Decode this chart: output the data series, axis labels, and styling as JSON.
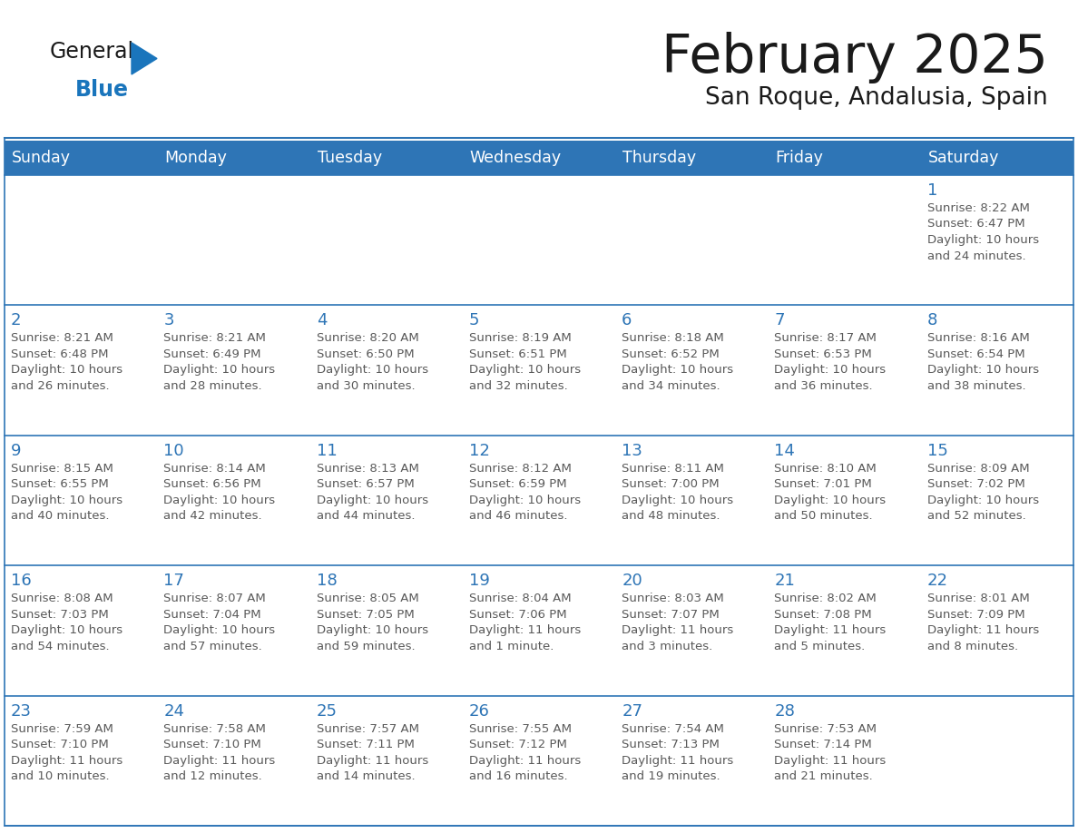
{
  "title": "February 2025",
  "subtitle": "San Roque, Andalusia, Spain",
  "header_bg": "#2E75B6",
  "header_text_color": "#FFFFFF",
  "cell_border_color": "#2E75B6",
  "day_number_color": "#2E75B6",
  "info_text_color": "#595959",
  "bg_color": "#FFFFFF",
  "alt_row_bg": "#EEF3F9",
  "days_of_week": [
    "Sunday",
    "Monday",
    "Tuesday",
    "Wednesday",
    "Thursday",
    "Friday",
    "Saturday"
  ],
  "weeks": [
    [
      {
        "day": "",
        "info": ""
      },
      {
        "day": "",
        "info": ""
      },
      {
        "day": "",
        "info": ""
      },
      {
        "day": "",
        "info": ""
      },
      {
        "day": "",
        "info": ""
      },
      {
        "day": "",
        "info": ""
      },
      {
        "day": "1",
        "info": "Sunrise: 8:22 AM\nSunset: 6:47 PM\nDaylight: 10 hours\nand 24 minutes."
      }
    ],
    [
      {
        "day": "2",
        "info": "Sunrise: 8:21 AM\nSunset: 6:48 PM\nDaylight: 10 hours\nand 26 minutes."
      },
      {
        "day": "3",
        "info": "Sunrise: 8:21 AM\nSunset: 6:49 PM\nDaylight: 10 hours\nand 28 minutes."
      },
      {
        "day": "4",
        "info": "Sunrise: 8:20 AM\nSunset: 6:50 PM\nDaylight: 10 hours\nand 30 minutes."
      },
      {
        "day": "5",
        "info": "Sunrise: 8:19 AM\nSunset: 6:51 PM\nDaylight: 10 hours\nand 32 minutes."
      },
      {
        "day": "6",
        "info": "Sunrise: 8:18 AM\nSunset: 6:52 PM\nDaylight: 10 hours\nand 34 minutes."
      },
      {
        "day": "7",
        "info": "Sunrise: 8:17 AM\nSunset: 6:53 PM\nDaylight: 10 hours\nand 36 minutes."
      },
      {
        "day": "8",
        "info": "Sunrise: 8:16 AM\nSunset: 6:54 PM\nDaylight: 10 hours\nand 38 minutes."
      }
    ],
    [
      {
        "day": "9",
        "info": "Sunrise: 8:15 AM\nSunset: 6:55 PM\nDaylight: 10 hours\nand 40 minutes."
      },
      {
        "day": "10",
        "info": "Sunrise: 8:14 AM\nSunset: 6:56 PM\nDaylight: 10 hours\nand 42 minutes."
      },
      {
        "day": "11",
        "info": "Sunrise: 8:13 AM\nSunset: 6:57 PM\nDaylight: 10 hours\nand 44 minutes."
      },
      {
        "day": "12",
        "info": "Sunrise: 8:12 AM\nSunset: 6:59 PM\nDaylight: 10 hours\nand 46 minutes."
      },
      {
        "day": "13",
        "info": "Sunrise: 8:11 AM\nSunset: 7:00 PM\nDaylight: 10 hours\nand 48 minutes."
      },
      {
        "day": "14",
        "info": "Sunrise: 8:10 AM\nSunset: 7:01 PM\nDaylight: 10 hours\nand 50 minutes."
      },
      {
        "day": "15",
        "info": "Sunrise: 8:09 AM\nSunset: 7:02 PM\nDaylight: 10 hours\nand 52 minutes."
      }
    ],
    [
      {
        "day": "16",
        "info": "Sunrise: 8:08 AM\nSunset: 7:03 PM\nDaylight: 10 hours\nand 54 minutes."
      },
      {
        "day": "17",
        "info": "Sunrise: 8:07 AM\nSunset: 7:04 PM\nDaylight: 10 hours\nand 57 minutes."
      },
      {
        "day": "18",
        "info": "Sunrise: 8:05 AM\nSunset: 7:05 PM\nDaylight: 10 hours\nand 59 minutes."
      },
      {
        "day": "19",
        "info": "Sunrise: 8:04 AM\nSunset: 7:06 PM\nDaylight: 11 hours\nand 1 minute."
      },
      {
        "day": "20",
        "info": "Sunrise: 8:03 AM\nSunset: 7:07 PM\nDaylight: 11 hours\nand 3 minutes."
      },
      {
        "day": "21",
        "info": "Sunrise: 8:02 AM\nSunset: 7:08 PM\nDaylight: 11 hours\nand 5 minutes."
      },
      {
        "day": "22",
        "info": "Sunrise: 8:01 AM\nSunset: 7:09 PM\nDaylight: 11 hours\nand 8 minutes."
      }
    ],
    [
      {
        "day": "23",
        "info": "Sunrise: 7:59 AM\nSunset: 7:10 PM\nDaylight: 11 hours\nand 10 minutes."
      },
      {
        "day": "24",
        "info": "Sunrise: 7:58 AM\nSunset: 7:10 PM\nDaylight: 11 hours\nand 12 minutes."
      },
      {
        "day": "25",
        "info": "Sunrise: 7:57 AM\nSunset: 7:11 PM\nDaylight: 11 hours\nand 14 minutes."
      },
      {
        "day": "26",
        "info": "Sunrise: 7:55 AM\nSunset: 7:12 PM\nDaylight: 11 hours\nand 16 minutes."
      },
      {
        "day": "27",
        "info": "Sunrise: 7:54 AM\nSunset: 7:13 PM\nDaylight: 11 hours\nand 19 minutes."
      },
      {
        "day": "28",
        "info": "Sunrise: 7:53 AM\nSunset: 7:14 PM\nDaylight: 11 hours\nand 21 minutes."
      },
      {
        "day": "",
        "info": ""
      }
    ]
  ],
  "logo_text_general": "General",
  "logo_text_blue": "Blue",
  "logo_color_general": "#1a1a1a",
  "logo_color_blue": "#1a75bc",
  "logo_triangle_color": "#1a75bc",
  "title_color": "#1a1a1a",
  "subtitle_color": "#1a1a1a"
}
